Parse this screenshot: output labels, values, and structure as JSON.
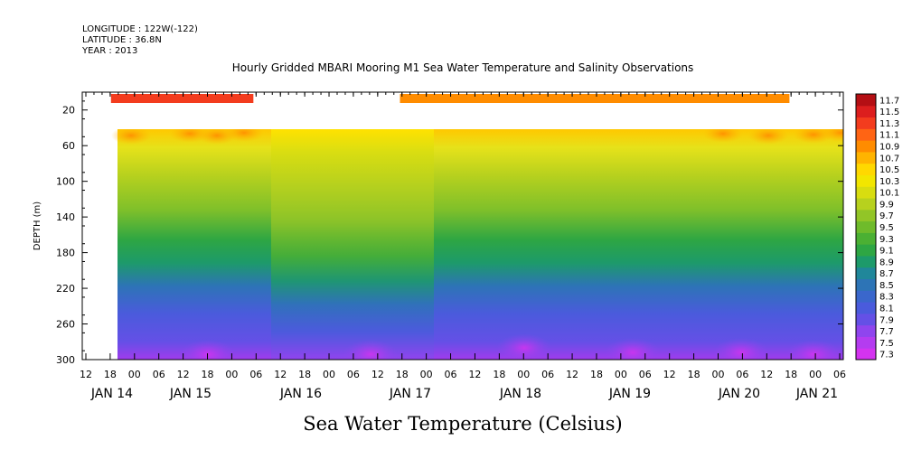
{
  "header": {
    "longitude": "LONGITUDE : 122W(-122)",
    "latitude": "LATITUDE : 36.8N",
    "year": "YEAR : 2013",
    "title": "Hourly Gridded MBARI Mooring M1 Sea Water Temperature and Salinity Observations"
  },
  "footer_label": "Sea Water Temperature (Celsius)",
  "chart_data": {
    "type": "heatmap",
    "title": "Hourly Gridded MBARI Mooring M1 Sea Water Temperature and Salinity Observations",
    "xlabel": "",
    "ylabel": "DEPTH (m)",
    "colorbar_label": "Sea Water Temperature (Celsius)",
    "y_axis": {
      "range": [
        300,
        0
      ],
      "ticks": [
        20,
        60,
        100,
        140,
        180,
        220,
        260,
        300
      ],
      "inverted": true
    },
    "x_axis": {
      "hour_ticks": [
        "12",
        "18",
        "00",
        "06",
        "12",
        "18",
        "00",
        "06",
        "12",
        "18",
        "00",
        "06",
        "12",
        "18",
        "00",
        "06",
        "12",
        "18",
        "00",
        "06",
        "12",
        "18",
        "00",
        "06",
        "12",
        "18",
        "00",
        "06",
        "12",
        "18",
        "00",
        "06"
      ],
      "day_labels": [
        "JAN 14",
        "JAN 15",
        "JAN 16",
        "JAN 17",
        "JAN 18",
        "JAN 19",
        "JAN 20",
        "JAN 21"
      ]
    },
    "colorbar_levels": [
      "7.3",
      "7.5",
      "7.7",
      "7.9",
      "8.1",
      "8.3",
      "8.5",
      "8.7",
      "8.9",
      "9.1",
      "9.3",
      "9.5",
      "9.7",
      "9.9",
      "10.1",
      "10.3",
      "10.5",
      "10.7",
      "10.9",
      "11.1",
      "11.3",
      "11.5",
      "11.7"
    ],
    "colorbar_colors": [
      "#d433f0",
      "#b43cf0",
      "#8f45ee",
      "#6450e6",
      "#4a5bdc",
      "#3a67cc",
      "#2d74b6",
      "#20879a",
      "#1d9a6a",
      "#2ea643",
      "#4bb033",
      "#6fbb2b",
      "#92c527",
      "#b7d11e",
      "#d8dd10",
      "#f2e600",
      "#ffd800",
      "#ffb400",
      "#ff8c00",
      "#ff6414",
      "#f33c1e",
      "#dc1e1e",
      "#b40f14"
    ],
    "near_surface_bar_temps": [
      {
        "start_hour": 18,
        "end_hour": 52,
        "value": 11.4
      },
      {
        "start_hour": 87,
        "end_hour": 180,
        "value": 11.0
      }
    ],
    "depth_profile_example": [
      {
        "depth": 40,
        "temp": 10.6
      },
      {
        "depth": 60,
        "temp": 10.1
      },
      {
        "depth": 100,
        "temp": 9.6
      },
      {
        "depth": 140,
        "temp": 9.3
      },
      {
        "depth": 180,
        "temp": 8.9
      },
      {
        "depth": 220,
        "temp": 8.3
      },
      {
        "depth": 260,
        "temp": 7.9
      },
      {
        "depth": 300,
        "temp": 7.5
      }
    ],
    "grid": false,
    "legend": "colorbar-right"
  }
}
